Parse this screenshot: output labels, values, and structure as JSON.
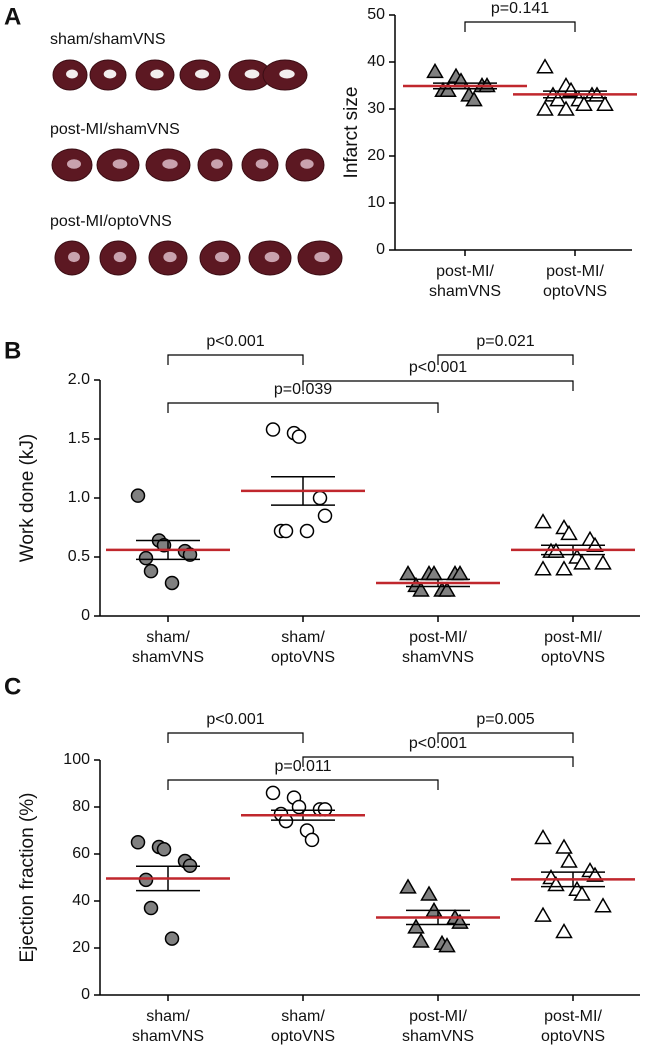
{
  "figure": {
    "panels": [
      "A",
      "B",
      "C"
    ],
    "photo_labels": [
      "sham/shamVNS",
      "post-MI/shamVNS",
      "post-MI/optoVNS"
    ]
  },
  "chart_data": [
    {
      "type": "dot",
      "ylabel": "Infarct size",
      "ylim": [
        0,
        50
      ],
      "yticks": [
        0,
        10,
        20,
        30,
        40,
        50
      ],
      "mean_color": "#c0272d",
      "categories": [
        [
          "post-MI/",
          "shamVNS"
        ],
        [
          "post-MI/",
          "optoVNS"
        ]
      ],
      "groups": [
        {
          "marker": "triangle",
          "fill": "#808080",
          "values": [
            35,
            37,
            34,
            32,
            36,
            38,
            34,
            33,
            35
          ],
          "mean": 34.9,
          "sem": 0.6
        },
        {
          "marker": "triangle",
          "fill": "#ffffff",
          "values": [
            31,
            32,
            30,
            33,
            35,
            39,
            31,
            33,
            34,
            32,
            30,
            33
          ],
          "mean": 33.1,
          "sem": 0.7
        }
      ],
      "comparisons": [
        {
          "groups": [
            0,
            1
          ],
          "label": "p=0.141"
        }
      ]
    },
    {
      "type": "dot",
      "ylabel": "Work done (kJ)",
      "ylim": [
        0,
        2
      ],
      "yticks": [
        0,
        0.5,
        {
          "value": 1,
          "label": "1.0"
        },
        1.5,
        {
          "value": 2,
          "label": "2.0"
        }
      ],
      "mean_color": "#c0272d",
      "categories": [
        [
          "sham/",
          "shamVNS"
        ],
        [
          "sham/",
          "optoVNS"
        ],
        [
          "post-MI/",
          "shamVNS"
        ],
        [
          "post-MI/",
          "optoVNS"
        ]
      ],
      "groups": [
        {
          "marker": "circle",
          "fill": "#808080",
          "values": [
            1.02,
            0.64,
            0.6,
            0.52,
            0.55,
            0.49,
            0.38,
            0.28
          ],
          "mean": 0.56,
          "sem": 0.08
        },
        {
          "marker": "circle",
          "fill": "#ffffff",
          "values": [
            1.55,
            1.58,
            1.52,
            1.0,
            0.85,
            0.72,
            0.72,
            0.72
          ],
          "mean": 1.06,
          "sem": 0.12
        },
        {
          "marker": "triangle",
          "fill": "#808080",
          "values": [
            0.36,
            0.36,
            0.36,
            0.36,
            0.36,
            0.26,
            0.22,
            0.22,
            0.22
          ],
          "mean": 0.28,
          "sem": 0.03
        },
        {
          "marker": "triangle",
          "fill": "#ffffff",
          "values": [
            0.8,
            0.75,
            0.7,
            0.65,
            0.6,
            0.55,
            0.55,
            0.5,
            0.45,
            0.45,
            0.4,
            0.4
          ],
          "mean": 0.56,
          "sem": 0.04
        }
      ],
      "comparisons": [
        {
          "groups": [
            0,
            1
          ],
          "label": "p<0.001"
        },
        {
          "groups": [
            2,
            3
          ],
          "label": "p=0.021"
        },
        {
          "groups": [
            1,
            3
          ],
          "label": "p<0.001"
        },
        {
          "groups": [
            0,
            2
          ],
          "label": "p=0.039"
        }
      ]
    },
    {
      "type": "dot",
      "ylabel": "Ejection fraction (%)",
      "ylim": [
        0,
        100
      ],
      "yticks": [
        0,
        20,
        40,
        60,
        80,
        100
      ],
      "mean_color": "#c0272d",
      "categories": [
        [
          "sham/",
          "shamVNS"
        ],
        [
          "sham/",
          "optoVNS"
        ],
        [
          "post-MI/",
          "shamVNS"
        ],
        [
          "post-MI/",
          "optoVNS"
        ]
      ],
      "groups": [
        {
          "marker": "circle",
          "fill": "#808080",
          "values": [
            65,
            63,
            62,
            57,
            55,
            49,
            37,
            24
          ],
          "mean": 49.6,
          "sem": 5.2
        },
        {
          "marker": "circle",
          "fill": "#ffffff",
          "values": [
            86,
            84,
            80,
            79,
            79,
            77,
            74,
            70,
            66
          ],
          "mean": 76.5,
          "sem": 2.1
        },
        {
          "marker": "triangle",
          "fill": "#808080",
          "values": [
            46,
            43,
            36,
            33,
            31,
            29,
            23,
            22,
            21
          ],
          "mean": 33,
          "sem": 3
        },
        {
          "marker": "triangle",
          "fill": "#ffffff",
          "values": [
            67,
            63,
            57,
            53,
            51,
            50,
            47,
            45,
            43,
            38,
            34,
            27
          ],
          "mean": 49.2,
          "sem": 3.1
        }
      ],
      "comparisons": [
        {
          "groups": [
            0,
            1
          ],
          "label": "p<0.001"
        },
        {
          "groups": [
            2,
            3
          ],
          "label": "p=0.005"
        },
        {
          "groups": [
            1,
            3
          ],
          "label": "p<0.001"
        },
        {
          "groups": [
            0,
            2
          ],
          "label": "p=0.011"
        }
      ]
    }
  ]
}
